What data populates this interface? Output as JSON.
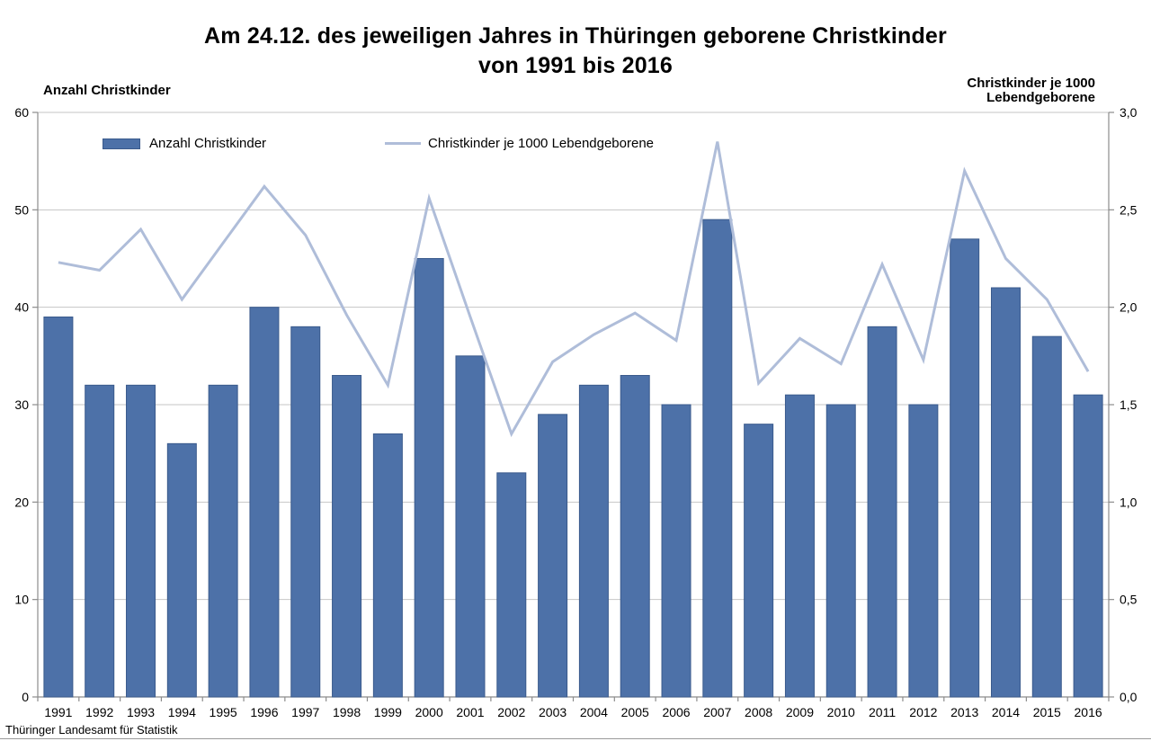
{
  "title": {
    "line1": "Am 24.12. des jeweiligen Jahres in Thüringen geborene Christkinder",
    "line2": "von 1991 bis 2016"
  },
  "left_axis_header": "Anzahl Christkinder",
  "right_axis_header": {
    "line1": "Christkinder je 1000",
    "line2": "Lebendgeborene"
  },
  "legend": {
    "bars": "Anzahl Christkinder",
    "line": "Christkinder je 1000 Lebendgeborene"
  },
  "source": "Thüringer Landesamt für Statistik",
  "colors": {
    "bar_fill": "#4D71A8",
    "bar_border": "#3A5A8C",
    "line": "#AFBDD9",
    "grid": "#C6C6C6",
    "axis": "#8C8C8C",
    "text": "#000000"
  },
  "chart_data": {
    "type": "bar+line combo",
    "title": "Am 24.12. des jeweiligen Jahres in Thüringen geborene Christkinder von 1991 bis 2016",
    "categories": [
      "1991",
      "1992",
      "1993",
      "1994",
      "1995",
      "1996",
      "1997",
      "1998",
      "1999",
      "2000",
      "2001",
      "2002",
      "2003",
      "2004",
      "2005",
      "2006",
      "2007",
      "2008",
      "2009",
      "2010",
      "2011",
      "2012",
      "2013",
      "2014",
      "2015",
      "2016"
    ],
    "series": [
      {
        "name": "Anzahl Christkinder",
        "type": "bar",
        "axis": "left",
        "values": [
          39,
          32,
          32,
          26,
          32,
          40,
          38,
          33,
          27,
          45,
          35,
          23,
          29,
          32,
          33,
          30,
          49,
          28,
          31,
          30,
          38,
          30,
          47,
          42,
          37,
          31
        ]
      },
      {
        "name": "Christkinder je 1000 Lebendgeborene",
        "type": "line",
        "axis": "right",
        "values": [
          2.23,
          2.19,
          2.4,
          2.04,
          2.33,
          2.62,
          2.37,
          1.96,
          1.6,
          2.56,
          1.95,
          1.35,
          1.72,
          1.86,
          1.97,
          1.83,
          2.85,
          1.61,
          1.84,
          1.71,
          2.22,
          1.73,
          2.7,
          2.25,
          2.04,
          1.67
        ]
      }
    ],
    "left_axis": {
      "label": "Anzahl Christkinder",
      "min": 0,
      "max": 60,
      "tick_step": 10,
      "ticks": [
        {
          "value": 0,
          "label": "0"
        },
        {
          "value": 10,
          "label": "10"
        },
        {
          "value": 20,
          "label": "20"
        },
        {
          "value": 30,
          "label": "30"
        },
        {
          "value": 40,
          "label": "40"
        },
        {
          "value": 50,
          "label": "50"
        },
        {
          "value": 60,
          "label": "60"
        }
      ]
    },
    "right_axis": {
      "label": "Christkinder je 1000 Lebendgeborene",
      "min": 0,
      "max": 3,
      "tick_step": 0.5,
      "ticks": [
        {
          "value": 0,
          "label": "0,0"
        },
        {
          "value": 0.5,
          "label": "0,5"
        },
        {
          "value": 1,
          "label": "1,0"
        },
        {
          "value": 1.5,
          "label": "1,5"
        },
        {
          "value": 2,
          "label": "2,0"
        },
        {
          "value": 2.5,
          "label": "2,5"
        },
        {
          "value": 3,
          "label": "3,0"
        }
      ]
    },
    "grid": "horizontal",
    "legend_position": "top-inside"
  }
}
